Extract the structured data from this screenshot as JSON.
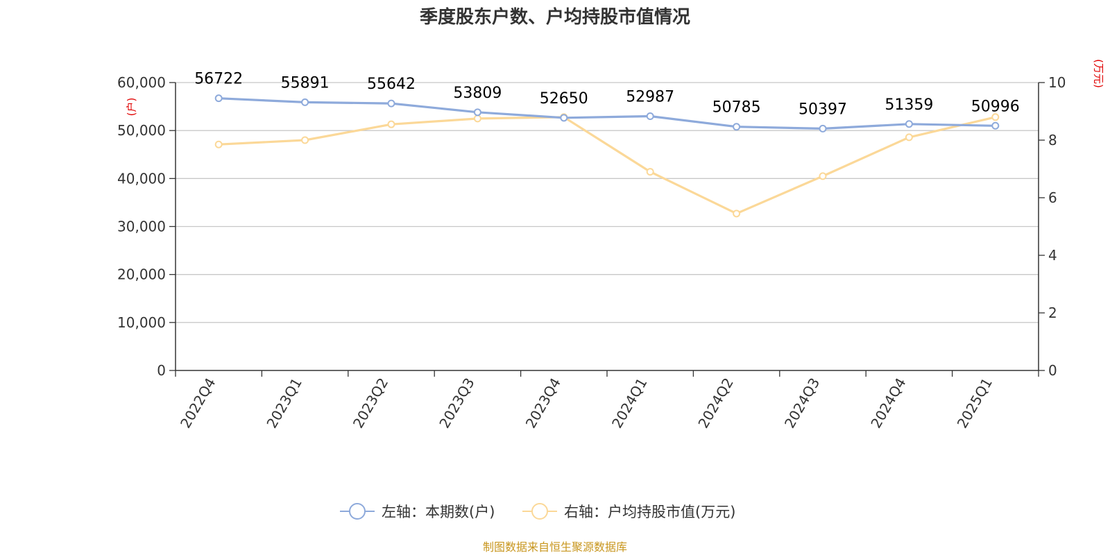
{
  "chart_data": {
    "type": "line",
    "title": "季度股东户数、户均持股市值情况",
    "categories": [
      "2022Q4",
      "2023Q1",
      "2023Q2",
      "2023Q3",
      "2023Q4",
      "2024Q1",
      "2024Q2",
      "2024Q3",
      "2024Q4",
      "2025Q1"
    ],
    "left_axis": {
      "unit": "(户)",
      "range": [
        0,
        60000
      ],
      "ticks": [
        "0",
        "10,000",
        "20,000",
        "30,000",
        "40,000",
        "50,000",
        "60,000"
      ]
    },
    "right_axis": {
      "unit": "(万元)",
      "range": [
        0,
        10
      ],
      "ticks": [
        "0",
        "2",
        "4",
        "6",
        "8",
        "10"
      ]
    },
    "grid": true,
    "legend_position": "bottom-center",
    "series": [
      {
        "name": "左轴：本期数(户)",
        "axis": "left",
        "color": "#8eaadb",
        "values": [
          56722,
          55891,
          55642,
          53809,
          52650,
          52987,
          50785,
          50397,
          51359,
          50996
        ],
        "labels": [
          "56722",
          "55891",
          "55642",
          "53809",
          "52650",
          "52987",
          "50785",
          "50397",
          "51359",
          "50996"
        ]
      },
      {
        "name": "右轴：户均持股市值(万元)",
        "axis": "right",
        "color": "#fbd898",
        "values": [
          7.85,
          8.0,
          8.55,
          8.75,
          8.8,
          6.9,
          5.45,
          6.75,
          8.1,
          8.8
        ]
      }
    ],
    "source": "制图数据来自恒生聚源数据库"
  }
}
